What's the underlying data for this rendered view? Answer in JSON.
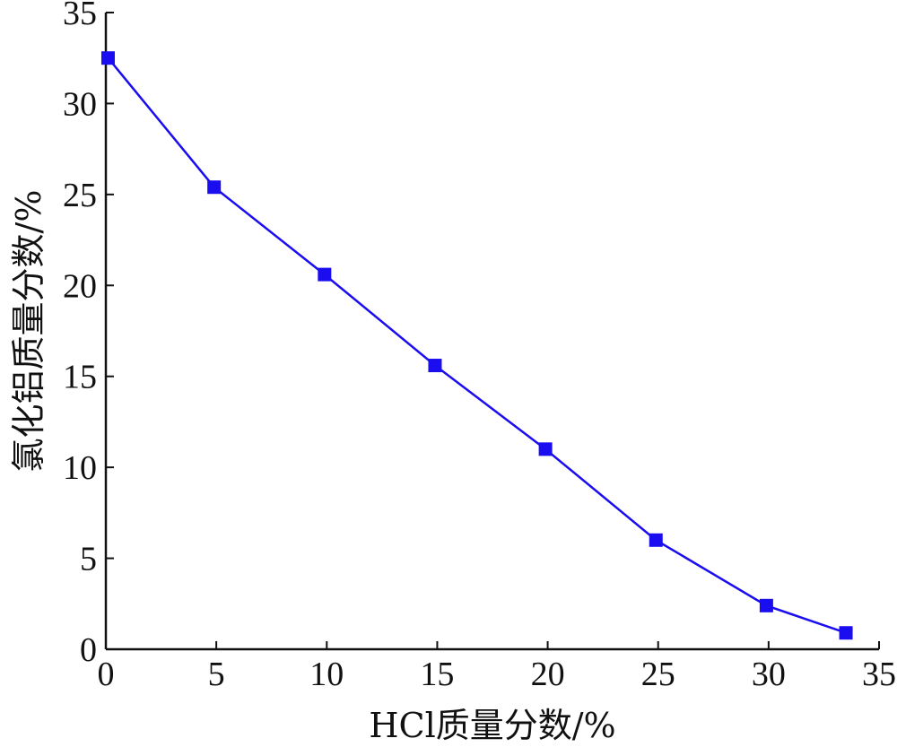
{
  "chart_data": {
    "type": "line",
    "title": "",
    "xlabel": "HCl质量分数/%",
    "ylabel": "氯化铝质量分数/%",
    "xlim": [
      0,
      35
    ],
    "ylim": [
      0,
      35
    ],
    "xticks": [
      0,
      5,
      10,
      15,
      20,
      25,
      30,
      35
    ],
    "yticks": [
      0,
      5,
      10,
      15,
      20,
      25,
      30,
      35
    ],
    "grid": false,
    "legend": "none",
    "series": [
      {
        "color": "#1a0df0",
        "marker": "square",
        "points": [
          {
            "x": 0.1,
            "y": 32.5
          },
          {
            "x": 4.9,
            "y": 25.4
          },
          {
            "x": 9.9,
            "y": 20.6
          },
          {
            "x": 14.9,
            "y": 15.6
          },
          {
            "x": 19.9,
            "y": 11.0
          },
          {
            "x": 24.9,
            "y": 6.0
          },
          {
            "x": 29.9,
            "y": 2.4
          },
          {
            "x": 33.5,
            "y": 0.9
          }
        ]
      }
    ]
  }
}
